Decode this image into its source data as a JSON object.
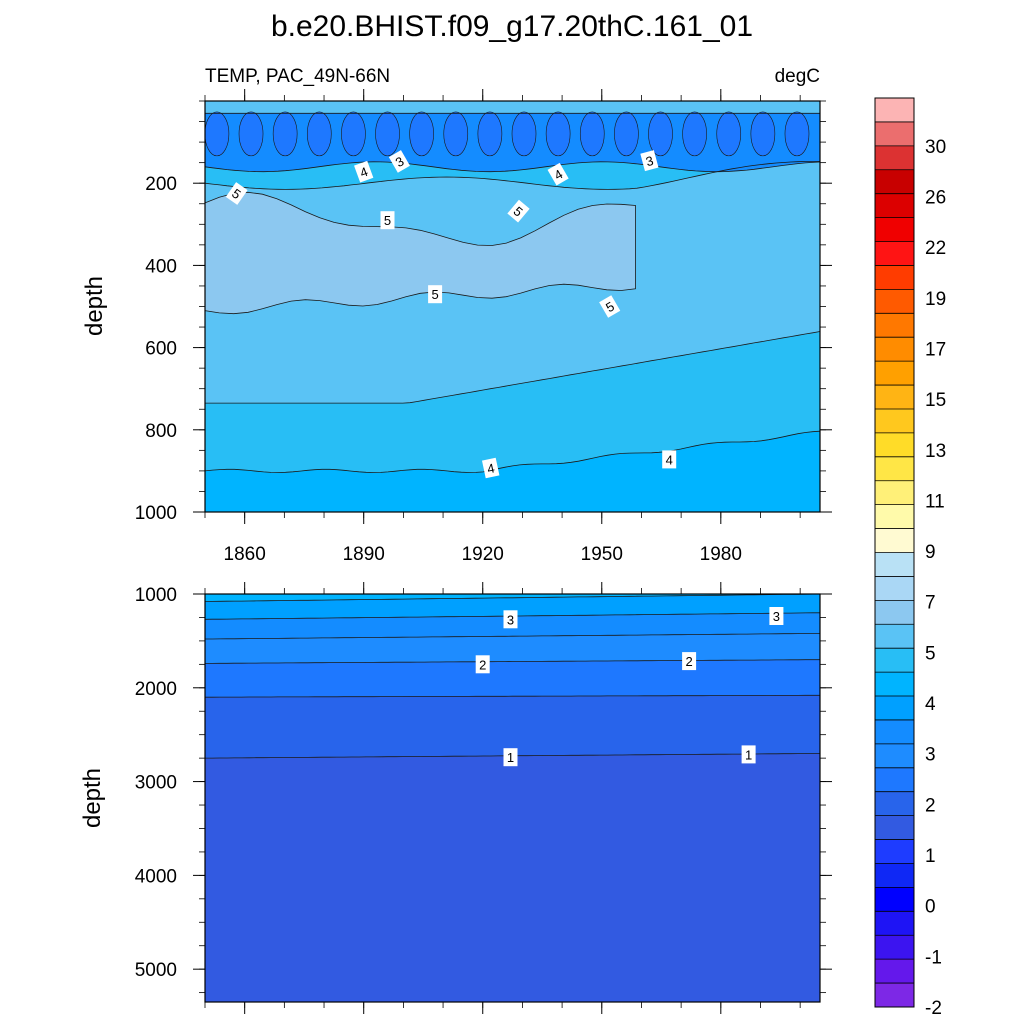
{
  "chart_data": {
    "type": "contour",
    "title": "b.e20.BHIST.f09_g17.20thC.161_01",
    "variable_label": "TEMP, PAC_49N-66N",
    "units_label": "degC",
    "ylabel": "depth",
    "x_ticks": [
      1860,
      1890,
      1920,
      1950,
      1980
    ],
    "x_range": [
      1850,
      2005
    ],
    "upper_panel": {
      "ylim": [
        0,
        1000
      ],
      "y_ticks": [
        200,
        400,
        600,
        800,
        1000
      ],
      "contour_labels": [
        {
          "text": "5",
          "x": 1858,
          "y": 225,
          "rot": 35
        },
        {
          "text": "4",
          "x": 1890,
          "y": 172,
          "rot": -20
        },
        {
          "text": "3",
          "x": 1899,
          "y": 147,
          "rot": -30
        },
        {
          "text": "5",
          "x": 1896,
          "y": 290,
          "rot": 0
        },
        {
          "text": "5",
          "x": 1929,
          "y": 268,
          "rot": 40
        },
        {
          "text": "4",
          "x": 1939,
          "y": 178,
          "rot": -30
        },
        {
          "text": "3",
          "x": 1962,
          "y": 145,
          "rot": -15
        },
        {
          "text": "5",
          "x": 1908,
          "y": 470,
          "rot": 0
        },
        {
          "text": "5",
          "x": 1952,
          "y": 500,
          "rot": -30
        },
        {
          "text": "4",
          "x": 1922,
          "y": 893,
          "rot": -12
        },
        {
          "text": "4",
          "x": 1967,
          "y": 872,
          "rot": 0
        }
      ]
    },
    "lower_panel": {
      "ylim": [
        1000,
        5350
      ],
      "y_ticks": [
        1000,
        2000,
        3000,
        4000,
        5000
      ],
      "contour_labels": [
        {
          "text": "3",
          "x": 1927,
          "y": 1270
        },
        {
          "text": "3",
          "x": 1994,
          "y": 1235
        },
        {
          "text": "2",
          "x": 1920,
          "y": 1750
        },
        {
          "text": "2",
          "x": 1972,
          "y": 1715
        },
        {
          "text": "1",
          "x": 1927,
          "y": 2740
        },
        {
          "text": "1",
          "x": 1987,
          "y": 2710
        }
      ]
    },
    "colorbar": {
      "labels": [
        "30",
        "26",
        "22",
        "19",
        "17",
        "15",
        "13",
        "11",
        "9",
        "7",
        "5",
        "4",
        "3",
        "2",
        "1",
        "0",
        "-1",
        "-2"
      ],
      "colors": [
        "#fcb4b4",
        "#eb6e6e",
        "#dc3232",
        "#c80000",
        "#dc0000",
        "#f00000",
        "#ff1414",
        "#ff3c00",
        "#ff5a00",
        "#ff7800",
        "#ff8c00",
        "#ffa000",
        "#ffb414",
        "#ffc81e",
        "#ffdc28",
        "#ffe646",
        "#fff078",
        "#fffaaa",
        "#fffad2",
        "#b9e1f5",
        "#aad7f5",
        "#8cc8f0",
        "#5ac3f5",
        "#28bef5",
        "#00b4ff",
        "#00a0ff",
        "#148cff",
        "#1e8cff",
        "#1e78ff",
        "#2864eb",
        "#325ae1",
        "#1e3cff",
        "#0f28f5",
        "#0000ff",
        "#1e14f5",
        "#3c14f0",
        "#6418eb",
        "#7d28e6"
      ]
    }
  }
}
